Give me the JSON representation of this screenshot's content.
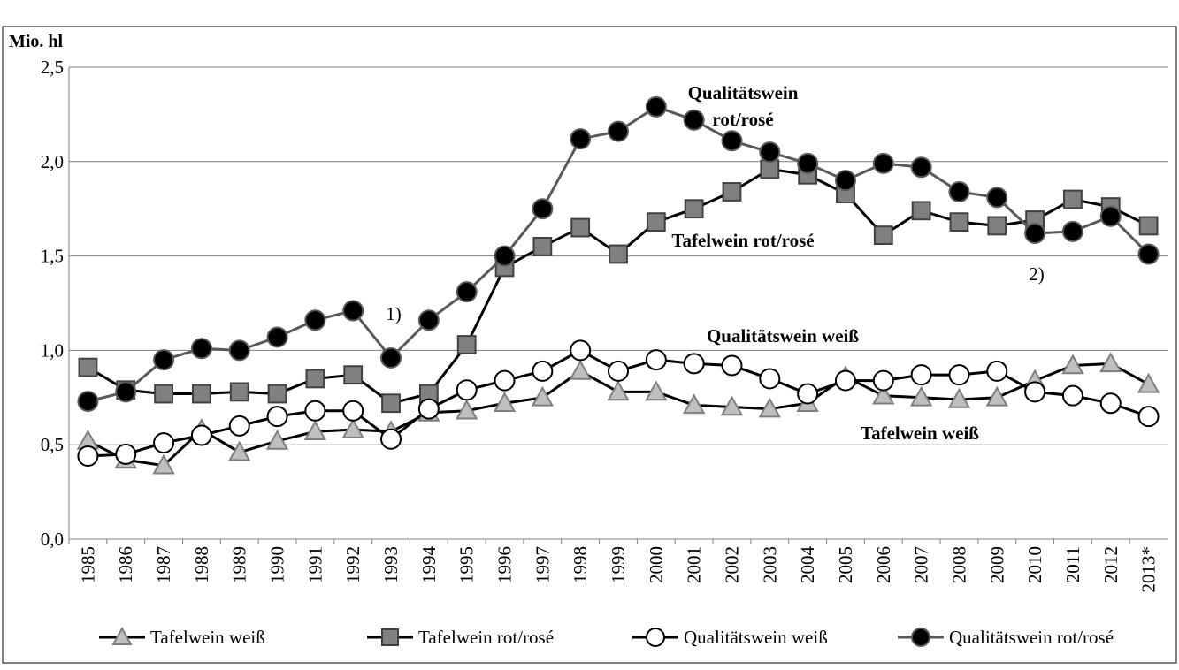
{
  "chart_data": {
    "type": "line",
    "y_label": "Mio. hl",
    "categories": [
      "1985",
      "1986",
      "1987",
      "1988",
      "1989",
      "1990",
      "1991",
      "1992",
      "1993",
      "1994",
      "1995",
      "1996",
      "1997",
      "1998",
      "1999",
      "2000",
      "2001",
      "2002",
      "2003",
      "2004",
      "2005",
      "2006",
      "2007",
      "2008",
      "2009",
      "2010",
      "2011",
      "2012",
      "2013*"
    ],
    "series": [
      {
        "name": "Tafelwein weiß",
        "color": "#000000",
        "marker": "triangle",
        "marker_fill": "#bfbfbf",
        "marker_stroke": "#7f7f7f",
        "values": [
          0.52,
          0.42,
          0.39,
          0.58,
          0.46,
          0.52,
          0.57,
          0.58,
          0.57,
          0.67,
          0.68,
          0.72,
          0.75,
          0.89,
          0.78,
          0.78,
          0.71,
          0.7,
          0.69,
          0.72,
          0.86,
          0.76,
          0.75,
          0.74,
          0.75,
          0.84,
          0.92,
          0.93,
          0.82
        ]
      },
      {
        "name": "Tafelwein rot/rosé",
        "color": "#000000",
        "marker": "square",
        "marker_fill": "#808080",
        "marker_stroke": "#404040",
        "values": [
          0.91,
          0.79,
          0.77,
          0.77,
          0.78,
          0.77,
          0.85,
          0.87,
          0.72,
          0.77,
          1.03,
          1.44,
          1.55,
          1.65,
          1.51,
          1.68,
          1.75,
          1.84,
          1.96,
          1.93,
          1.83,
          1.61,
          1.74,
          1.68,
          1.66,
          1.69,
          1.8,
          1.76,
          1.66
        ]
      },
      {
        "name": "Qualitätswein weiß",
        "color": "#000000",
        "marker": "circle",
        "marker_fill": "#ffffff",
        "marker_stroke": "#000000",
        "values": [
          0.44,
          0.45,
          0.51,
          0.55,
          0.6,
          0.65,
          0.68,
          0.68,
          0.53,
          0.69,
          0.79,
          0.84,
          0.89,
          1.0,
          0.89,
          0.95,
          0.93,
          0.92,
          0.85,
          0.77,
          0.84,
          0.84,
          0.87,
          0.87,
          0.89,
          0.78,
          0.76,
          0.72,
          0.65
        ]
      },
      {
        "name": "Qualitätswein rot/rosé",
        "color": "#595959",
        "marker": "circle",
        "marker_fill": "#000000",
        "marker_stroke": "#595959",
        "values": [
          0.73,
          0.78,
          0.95,
          1.01,
          1.0,
          1.07,
          1.16,
          1.21,
          0.96,
          1.16,
          1.31,
          1.5,
          1.75,
          2.12,
          2.16,
          2.29,
          2.22,
          2.11,
          2.05,
          1.99,
          1.9,
          1.99,
          1.97,
          1.84,
          1.81,
          1.62,
          1.63,
          1.71,
          1.51
        ]
      }
    ],
    "ylim": [
      0,
      2.5
    ],
    "yticks": [
      {
        "value": 0,
        "label": "0,0"
      },
      {
        "value": 0.5,
        "label": "0,5"
      },
      {
        "value": 1,
        "label": "1,0"
      },
      {
        "value": 1.5,
        "label": "1,5"
      },
      {
        "value": 2,
        "label": "2,0"
      },
      {
        "value": 2.5,
        "label": "2,5"
      }
    ],
    "grid": true,
    "legend": "bottom",
    "annotations": [
      {
        "lines": [
          "Qualitätswein",
          "rot/rosé"
        ]
      },
      {
        "lines": [
          "Tafelwein rot/rosé"
        ]
      },
      {
        "lines": [
          "Qualitätswein weiß"
        ]
      },
      {
        "lines": [
          "Tafelwein weiß"
        ]
      },
      {
        "lines": [
          "1)"
        ]
      },
      {
        "lines": [
          "2)"
        ]
      }
    ]
  }
}
